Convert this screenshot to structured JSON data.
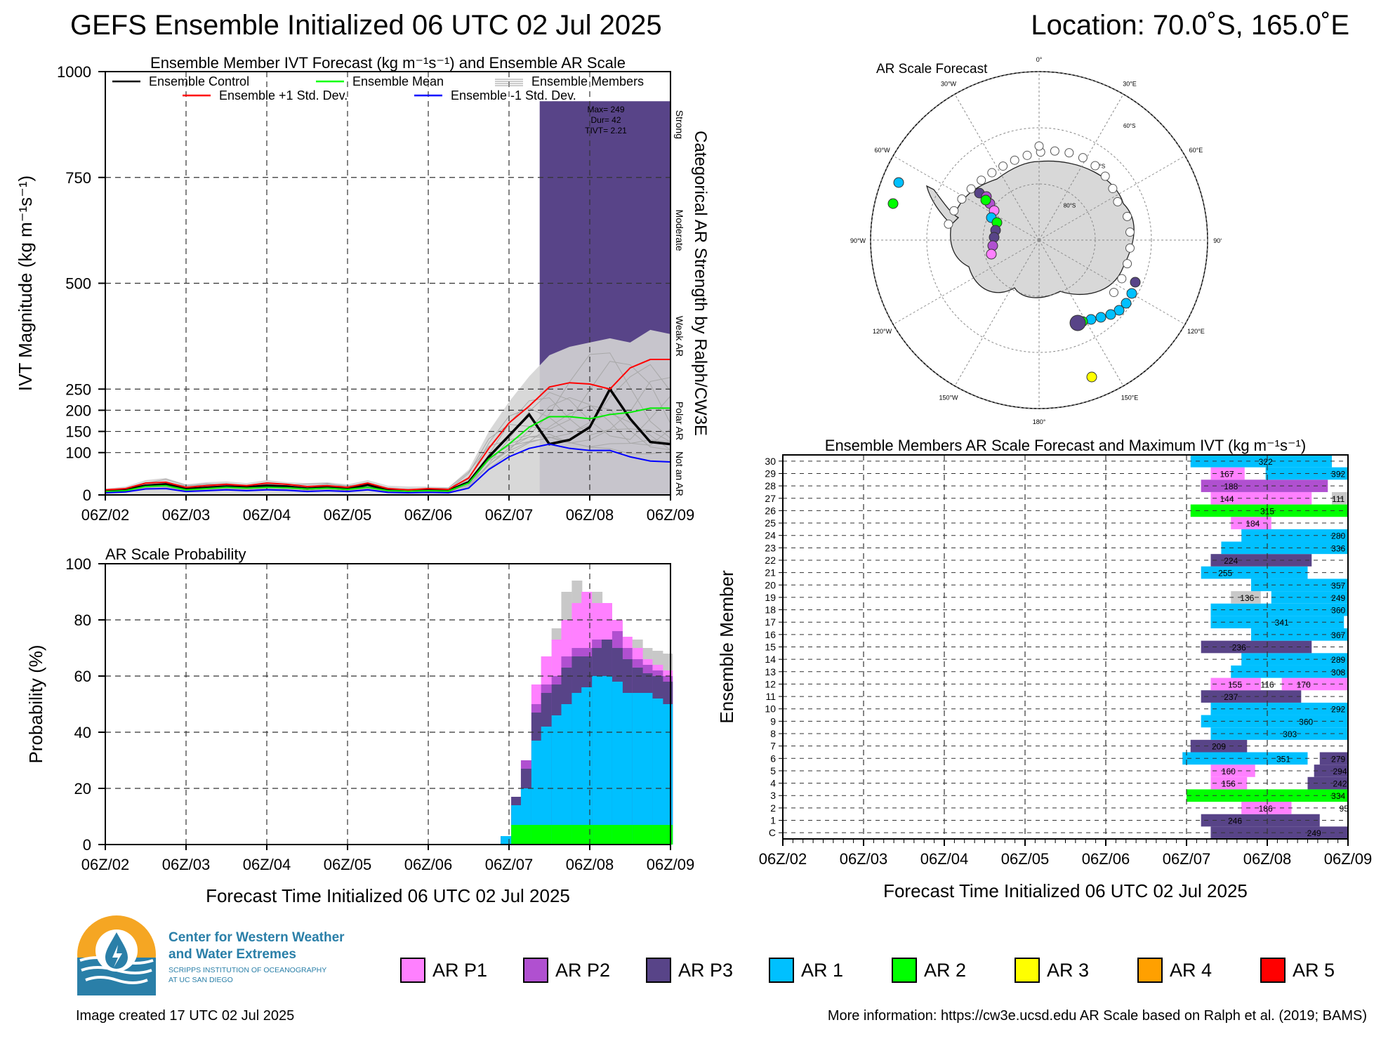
{
  "header": {
    "title": "GEFS Ensemble Initialized 06 UTC 02 Jul 2025",
    "location": "Location: 70.0˚S, 165.0˚E"
  },
  "time_ticks": [
    "06Z/02",
    "06Z/03",
    "06Z/04",
    "06Z/05",
    "06Z/06",
    "06Z/07",
    "06Z/08",
    "06Z/09"
  ],
  "xlabel": "Forecast Time Initialized 06 UTC 02 Jul 2025",
  "colors": {
    "arp1": "#ff80ff",
    "arp2": "#b050d0",
    "arp3": "#584488",
    "ar1": "#00c0ff",
    "ar2": "#00ff00",
    "ar3": "#ffff00",
    "ar4": "#ffa000",
    "ar5": "#ff0000",
    "gray": "#c8c8c8"
  },
  "chart_data": [
    {
      "id": "ivt",
      "type": "line",
      "title": "Ensemble Member IVT Forecast (kg m⁻¹s⁻¹) and Ensemble AR Scale",
      "ylabel": "IVT Magnitude (kg m⁻¹s⁻¹)",
      "right_label": "Categorical AR Strength by Ralph/CW3E",
      "ylim": [
        0,
        1000
      ],
      "yticks": [
        0,
        100,
        150,
        200,
        250,
        500,
        750,
        1000
      ],
      "ytick_labels": [
        "0",
        "100",
        "150",
        "200",
        "250",
        "500",
        "750",
        "1000"
      ],
      "category_labels": [
        {
          "text": "Strong",
          "mid": 875
        },
        {
          "text": "Moderate",
          "mid": 625
        },
        {
          "text": "Weak AR",
          "mid": 375
        },
        {
          "text": "Polar AR",
          "mid": 175
        },
        {
          "text": "Not an AR",
          "mid": 50
        }
      ],
      "legend": [
        {
          "name": "Ensemble Control",
          "color": "#000000"
        },
        {
          "name": "Ensemble Mean",
          "color": "#00ff00"
        },
        {
          "name": "Ensemble Members",
          "color": "#b0b0b0"
        },
        {
          "name": "Ensemble +1 Std. Dev.",
          "color": "#ff0000"
        },
        {
          "name": "Ensemble -1 Std. Dev.",
          "color": "#0000ff"
        }
      ],
      "x_days": [
        0,
        0.25,
        0.5,
        0.75,
        1,
        1.25,
        1.5,
        1.75,
        2,
        2.25,
        2.5,
        2.75,
        3,
        3.25,
        3.5,
        3.75,
        4,
        4.25,
        4.5,
        4.75,
        5,
        5.25,
        5.5,
        5.75,
        6,
        6.25,
        6.5,
        6.75,
        7
      ],
      "series": [
        {
          "name": "Ensemble Control",
          "values": [
            10,
            12,
            22,
            25,
            14,
            17,
            20,
            18,
            22,
            20,
            15,
            18,
            14,
            24,
            12,
            10,
            12,
            10,
            30,
            90,
            140,
            190,
            120,
            130,
            160,
            250,
            180,
            125,
            120
          ]
        },
        {
          "name": "Ensemble Mean",
          "values": [
            8,
            10,
            20,
            22,
            12,
            15,
            18,
            16,
            18,
            17,
            14,
            16,
            13,
            18,
            10,
            9,
            10,
            9,
            28,
            85,
            120,
            160,
            185,
            185,
            180,
            190,
            195,
            205,
            205
          ]
        },
        {
          "name": "Ensemble +1 Std. Dev.",
          "values": [
            12,
            15,
            28,
            30,
            18,
            22,
            25,
            22,
            28,
            25,
            20,
            22,
            18,
            28,
            15,
            12,
            15,
            13,
            40,
            110,
            170,
            210,
            255,
            265,
            262,
            250,
            300,
            320,
            320
          ]
        },
        {
          "name": "Ensemble -1 Std. Dev.",
          "values": [
            5,
            7,
            14,
            15,
            8,
            10,
            12,
            10,
            12,
            11,
            8,
            10,
            8,
            12,
            6,
            5,
            6,
            5,
            16,
            60,
            90,
            110,
            120,
            110,
            105,
            105,
            90,
            80,
            78
          ]
        }
      ],
      "envelope_max": [
        15,
        20,
        35,
        40,
        25,
        30,
        32,
        28,
        35,
        30,
        28,
        30,
        25,
        35,
        22,
        20,
        20,
        18,
        60,
        150,
        220,
        280,
        330,
        350,
        360,
        370,
        360,
        390,
        380
      ],
      "bands": [
        {
          "category": "arp3",
          "x0": 5.38,
          "x1": 7,
          "ymin": 0,
          "ymax": 930
        }
      ],
      "annotation": [
        "Max= 249",
        "Dur= 42",
        "TIVT= 2.21"
      ]
    },
    {
      "id": "prob",
      "type": "area",
      "title": "AR Scale Probability",
      "ylabel": "Probability (%)",
      "ylim": [
        0,
        100
      ],
      "yticks": [
        0,
        20,
        40,
        60,
        80,
        100
      ],
      "x_days": [
        4.96,
        5.09,
        5.21,
        5.34,
        5.46,
        5.59,
        5.71,
        5.84,
        5.96,
        6.09,
        6.21,
        6.34,
        6.46,
        6.59,
        6.71,
        6.84,
        6.96
      ],
      "cumulative": {
        "ar2": [
          0,
          7,
          7,
          7,
          7,
          7,
          7,
          7,
          7,
          7,
          7,
          7,
          7,
          7,
          7,
          7,
          7
        ],
        "ar1": [
          3,
          14,
          20,
          37,
          42,
          46,
          50,
          54,
          56,
          60,
          60,
          58,
          54,
          54,
          54,
          52,
          50
        ],
        "arp3": [
          3,
          17,
          27,
          47,
          54,
          57,
          63,
          67,
          67,
          70,
          73,
          70,
          66,
          63,
          61,
          60,
          58
        ],
        "arp2": [
          3,
          17,
          30,
          50,
          57,
          60,
          67,
          70,
          70,
          73,
          73,
          76,
          70,
          66,
          64,
          62,
          60
        ],
        "arp1": [
          3,
          17,
          30,
          57,
          67,
          73,
          80,
          86,
          90,
          86,
          86,
          80,
          74,
          70,
          66,
          64,
          62
        ],
        "gray": [
          3,
          17,
          30,
          57,
          67,
          77,
          90,
          94,
          90,
          90,
          86,
          80,
          74,
          73,
          70,
          69,
          68
        ]
      }
    },
    {
      "id": "members",
      "type": "table",
      "title": "Ensemble Members AR Scale Forecast and Maximum IVT (kg m⁻¹s⁻¹)",
      "ylabel": "Ensemble Member",
      "member_labels": [
        "C",
        "1",
        "2",
        "3",
        "4",
        "5",
        "6",
        "7",
        "8",
        "9",
        "10",
        "11",
        "12",
        "13",
        "14",
        "15",
        "16",
        "17",
        "18",
        "19",
        "20",
        "21",
        "22",
        "23",
        "24",
        "25",
        "26",
        "27",
        "28",
        "29",
        "30"
      ],
      "rows": [
        {
          "segs": [
            [
              5.3,
              7,
              "arp3"
            ]
          ],
          "labels": [
            [
              6.58,
              "249"
            ]
          ]
        },
        {
          "segs": [
            [
              5.18,
              6.65,
              "arp3"
            ]
          ],
          "labels": [
            [
              5.6,
              "246"
            ]
          ]
        },
        {
          "segs": [
            [
              5.68,
              6.3,
              "arp1"
            ]
          ],
          "labels": [
            [
              5.98,
              "186"
            ]
          ],
          "after": [
            [
              6.95,
              "95"
            ]
          ]
        },
        {
          "segs": [
            [
              5.0,
              7,
              "ar2"
            ]
          ],
          "labels": [
            [
              6.88,
              "334"
            ]
          ]
        },
        {
          "segs": [
            [
              5.3,
              5.75,
              "arp1"
            ],
            [
              6.5,
              7,
              "arp3"
            ]
          ],
          "labels": [
            [
              5.52,
              "156"
            ],
            [
              6.9,
              "242"
            ]
          ]
        },
        {
          "segs": [
            [
              5.3,
              5.85,
              "arp1"
            ],
            [
              6.58,
              7,
              "arp3"
            ]
          ],
          "labels": [
            [
              5.52,
              "160"
            ],
            [
              6.9,
              "294"
            ]
          ]
        },
        {
          "segs": [
            [
              4.95,
              6.5,
              "ar1"
            ],
            [
              6.65,
              7,
              "arp3"
            ]
          ],
          "labels": [
            [
              6.2,
              "351"
            ],
            [
              6.88,
              "279"
            ]
          ]
        },
        {
          "segs": [
            [
              5.05,
              5.75,
              "arp3"
            ]
          ],
          "labels": [
            [
              5.4,
              "209"
            ]
          ]
        },
        {
          "segs": [
            [
              5.3,
              7,
              "ar1"
            ]
          ],
          "labels": [
            [
              6.28,
              "303"
            ]
          ]
        },
        {
          "segs": [
            [
              5.18,
              7,
              "ar1"
            ]
          ],
          "labels": [
            [
              6.48,
              "360"
            ]
          ]
        },
        {
          "segs": [
            [
              5.3,
              7,
              "ar1"
            ]
          ],
          "labels": [
            [
              6.88,
              "292"
            ]
          ]
        },
        {
          "segs": [
            [
              5.18,
              6.42,
              "arp3"
            ]
          ],
          "labels": [
            [
              5.55,
              "237"
            ]
          ]
        },
        {
          "segs": [
            [
              5.3,
              5.92,
              "arp1"
            ],
            [
              6.18,
              7,
              "arp1"
            ]
          ],
          "labels": [
            [
              5.6,
              "155"
            ],
            [
              6.0,
              "116"
            ],
            [
              6.45,
              "170"
            ]
          ]
        },
        {
          "segs": [
            [
              5.55,
              7,
              "ar1"
            ]
          ],
          "labels": [
            [
              6.88,
              "308"
            ]
          ]
        },
        {
          "segs": [
            [
              5.68,
              7,
              "ar1"
            ]
          ],
          "labels": [
            [
              6.88,
              "289"
            ]
          ]
        },
        {
          "segs": [
            [
              5.18,
              6.55,
              "arp3"
            ]
          ],
          "labels": [
            [
              5.65,
              "236"
            ]
          ]
        },
        {
          "segs": [
            [
              5.8,
              7,
              "ar1"
            ]
          ],
          "labels": [
            [
              6.88,
              "367"
            ]
          ]
        },
        {
          "segs": [
            [
              5.3,
              6.95,
              "ar1"
            ]
          ],
          "labels": [
            [
              6.18,
              "341"
            ]
          ]
        },
        {
          "segs": [
            [
              5.3,
              7,
              "ar1"
            ]
          ],
          "labels": [
            [
              6.88,
              "360"
            ]
          ]
        },
        {
          "segs": [
            [
              5.55,
              5.92,
              "gray"
            ],
            [
              6.05,
              7,
              "ar1"
            ]
          ],
          "labels": [
            [
              5.75,
              "136"
            ],
            [
              6.88,
              "249"
            ]
          ]
        },
        {
          "segs": [
            [
              5.8,
              7,
              "ar1"
            ]
          ],
          "labels": [
            [
              6.88,
              "357"
            ]
          ]
        },
        {
          "segs": [
            [
              5.18,
              6.5,
              "ar1"
            ]
          ],
          "labels": [
            [
              5.48,
              "255"
            ]
          ]
        },
        {
          "segs": [
            [
              5.3,
              6.55,
              "arp3"
            ]
          ],
          "labels": [
            [
              5.55,
              "224"
            ]
          ]
        },
        {
          "segs": [
            [
              5.43,
              7,
              "ar1"
            ]
          ],
          "labels": [
            [
              6.88,
              "336"
            ]
          ]
        },
        {
          "segs": [
            [
              5.68,
              7,
              "ar1"
            ]
          ],
          "labels": [
            [
              6.88,
              "280"
            ]
          ]
        },
        {
          "segs": [
            [
              5.55,
              6.05,
              "arp1"
            ]
          ],
          "labels": [
            [
              5.82,
              "184"
            ]
          ]
        },
        {
          "segs": [
            [
              5.05,
              7,
              "ar2"
            ]
          ],
          "labels": [
            [
              6.0,
              "315"
            ]
          ]
        },
        {
          "segs": [
            [
              5.3,
              6.55,
              "arp1"
            ],
            [
              6.8,
              7,
              "gray"
            ]
          ],
          "labels": [
            [
              5.5,
              "144"
            ],
            [
              6.88,
              "111"
            ]
          ]
        },
        {
          "segs": [
            [
              5.18,
              6.75,
              "arp2"
            ]
          ],
          "labels": [
            [
              5.55,
              "188"
            ]
          ]
        },
        {
          "segs": [
            [
              5.3,
              5.72,
              "arp1"
            ],
            [
              5.98,
              7,
              "ar1"
            ]
          ],
          "labels": [
            [
              5.5,
              "167"
            ],
            [
              6.88,
              "392"
            ]
          ]
        },
        {
          "segs": [
            [
              5.05,
              6.8,
              "ar1"
            ]
          ],
          "labels": [
            [
              5.98,
              "322"
            ]
          ]
        }
      ]
    }
  ],
  "map": {
    "title": "AR Scale Forecast",
    "lon_labels": [
      "0°",
      "30°E",
      "60°E",
      "90°E",
      "120°E",
      "150°E",
      "180°",
      "150°W",
      "120°W",
      "90°W",
      "60°W",
      "30°W"
    ],
    "lat_labels": [
      "60°S",
      "70°S",
      "80°S"
    ]
  },
  "legend": [
    {
      "label": "AR P1",
      "key": "arp1"
    },
    {
      "label": "AR P2",
      "key": "arp2"
    },
    {
      "label": "AR P3",
      "key": "arp3"
    },
    {
      "label": "AR 1",
      "key": "ar1"
    },
    {
      "label": "AR 2",
      "key": "ar2"
    },
    {
      "label": "AR 3",
      "key": "ar3"
    },
    {
      "label": "AR 4",
      "key": "ar4"
    },
    {
      "label": "AR 5",
      "key": "ar5"
    }
  ],
  "logo": {
    "line1": "Center for Western Weather",
    "line2": "and Water Extremes",
    "line3": "SCRIPPS INSTITUTION OF OCEANOGRAPHY",
    "line4": "AT UC SAN DIEGO"
  },
  "footer": {
    "created": "Image created 17 UTC 02 Jul 2025",
    "more_info": "More information: https://cw3e.ucsd.edu AR Scale based on Ralph et al. (2019; BAMS)"
  }
}
